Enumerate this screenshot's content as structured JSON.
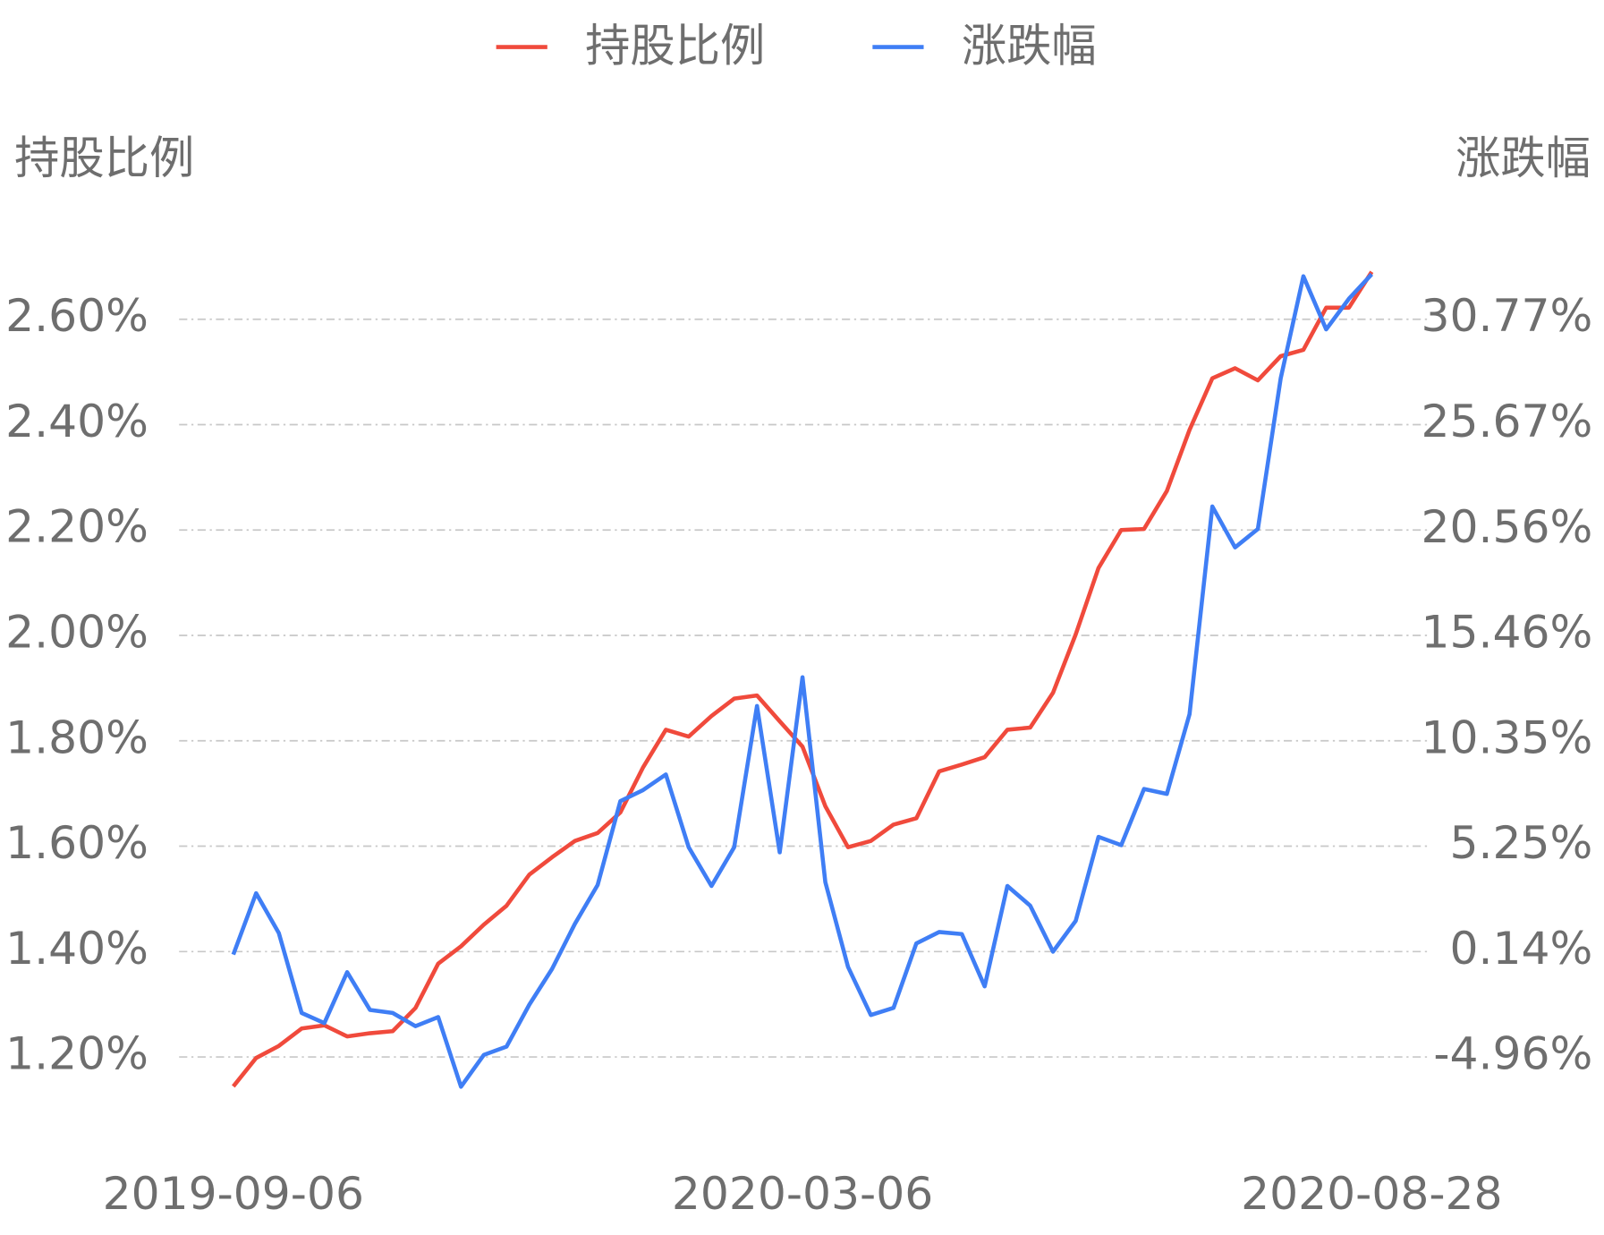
{
  "chart_data": {
    "type": "line",
    "y_axis_label": "持股比例",
    "y2_axis_label": "涨跌幅",
    "categories": [
      "2019-09-06",
      null,
      null,
      null,
      null,
      null,
      null,
      null,
      null,
      null,
      null,
      null,
      null,
      null,
      null,
      null,
      null,
      null,
      null,
      null,
      null,
      null,
      null,
      null,
      null,
      "2020-03-06",
      null,
      null,
      null,
      null,
      null,
      null,
      null,
      null,
      null,
      null,
      null,
      null,
      null,
      null,
      null,
      null,
      null,
      null,
      null,
      null,
      null,
      null,
      null,
      null,
      "2020-08-28"
    ],
    "series": [
      {
        "name": "持股比例",
        "color": "#f04a3c",
        "axis": "y",
        "values": [
          1.144,
          1.198,
          1.221,
          1.254,
          1.26,
          1.239,
          1.245,
          1.249,
          1.293,
          1.377,
          1.41,
          1.451,
          1.487,
          1.546,
          1.579,
          1.61,
          1.625,
          1.664,
          1.75,
          1.821,
          1.808,
          1.847,
          1.88,
          1.886,
          1.837,
          1.789,
          1.676,
          1.598,
          1.61,
          1.641,
          1.653,
          1.742,
          1.755,
          1.769,
          1.821,
          1.825,
          1.891,
          2.002,
          2.128,
          2.2,
          2.202,
          2.274,
          2.39,
          2.488,
          2.507,
          2.484,
          2.53,
          2.542,
          2.622,
          2.622,
          2.69
        ]
      },
      {
        "name": "涨跌幅",
        "color": "#3f7ef5",
        "axis": "y2",
        "values": [
          0.0,
          2.97,
          1.04,
          -2.83,
          -3.32,
          -0.85,
          -2.68,
          -2.83,
          -3.47,
          -3.03,
          -6.4,
          -4.86,
          -4.46,
          -2.43,
          -0.7,
          1.48,
          3.37,
          7.43,
          7.97,
          8.72,
          5.2,
          3.32,
          5.2,
          12.04,
          4.95,
          13.43,
          3.51,
          -0.6,
          -2.93,
          -2.58,
          0.54,
          1.09,
          0.99,
          -1.54,
          3.32,
          2.37,
          0.14,
          1.63,
          5.7,
          5.3,
          8.02,
          7.78,
          11.64,
          21.7,
          19.72,
          20.61,
          27.9,
          32.85,
          30.28,
          31.76,
          32.95
        ]
      }
    ],
    "ylim": [
      1.1,
      2.7
    ],
    "yticks": [
      {
        "value": 1.2,
        "label": "1.20%"
      },
      {
        "value": 1.4,
        "label": "1.40%"
      },
      {
        "value": 1.6,
        "label": "1.60%"
      },
      {
        "value": 1.8,
        "label": "1.80%"
      },
      {
        "value": 2.0,
        "label": "2.00%"
      },
      {
        "value": 2.2,
        "label": "2.20%"
      },
      {
        "value": 2.4,
        "label": "2.40%"
      },
      {
        "value": 2.6,
        "label": "2.60%"
      }
    ],
    "y2lim": [
      -7.5125,
      33.3225
    ],
    "y2ticks": [
      {
        "value": -4.96,
        "label": "-4.96%"
      },
      {
        "value": 0.14,
        "label": "0.14%"
      },
      {
        "value": 5.25,
        "label": "5.25%"
      },
      {
        "value": 10.35,
        "label": "10.35%"
      },
      {
        "value": 15.46,
        "label": "15.46%"
      },
      {
        "value": 20.56,
        "label": "20.56%"
      },
      {
        "value": 25.67,
        "label": "25.67%"
      },
      {
        "value": 30.77,
        "label": "30.77%"
      }
    ],
    "grid": true,
    "legend": "top"
  }
}
